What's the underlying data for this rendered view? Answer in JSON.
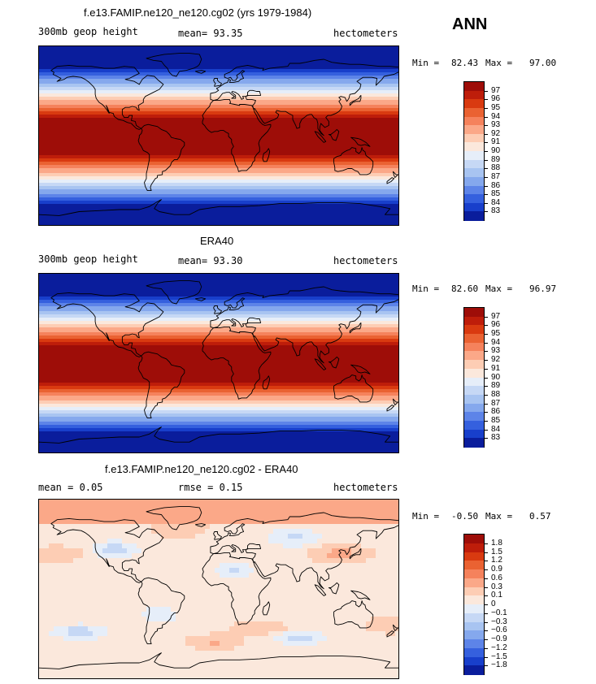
{
  "season": "ANN",
  "chart_data": [
    {
      "type": "heatmap",
      "title": "f.e13.FAMIP.ne120_ne120.cg02 (yrs 1979-1984)",
      "subtitle_left": "300mb geop height",
      "subtitle_center": "mean=   93.35",
      "subtitle_right": "hectometers",
      "min_label": "Min =",
      "min_value": "82.43",
      "max_label": "Max =",
      "max_value": "97.00",
      "colorbar_levels": [
        "97",
        "96",
        "95",
        "94",
        "93",
        "92",
        "91",
        "90",
        "89",
        "88",
        "87",
        "86",
        "85",
        "84",
        "83"
      ],
      "colorbar_colors": [
        "#9e0d08",
        "#be1d0a",
        "#d93a10",
        "#ea6232",
        "#f5825c",
        "#fba888",
        "#fdcdb4",
        "#fbe8dc",
        "#e6eef9",
        "#c6d8f5",
        "#a8c4f1",
        "#85a8ed",
        "#5d84e8",
        "#3560de",
        "#183fcb",
        "#0a1d9c"
      ],
      "field": "geop"
    },
    {
      "type": "heatmap",
      "title": "ERA40",
      "subtitle_left": "300mb geop height",
      "subtitle_center": "mean=   93.30",
      "subtitle_right": "hectometers",
      "min_label": "Min =",
      "min_value": "82.60",
      "max_label": "Max =",
      "max_value": "96.97",
      "colorbar_levels": [
        "97",
        "96",
        "95",
        "94",
        "93",
        "92",
        "91",
        "90",
        "89",
        "88",
        "87",
        "86",
        "85",
        "84",
        "83"
      ],
      "colorbar_colors": [
        "#9e0d08",
        "#be1d0a",
        "#d93a10",
        "#ea6232",
        "#f5825c",
        "#fba888",
        "#fdcdb4",
        "#fbe8dc",
        "#e6eef9",
        "#c6d8f5",
        "#a8c4f1",
        "#85a8ed",
        "#5d84e8",
        "#3560de",
        "#183fcb",
        "#0a1d9c"
      ],
      "field": "geop"
    },
    {
      "type": "heatmap",
      "title": "f.e13.FAMIP.ne120_ne120.cg02 - ERA40",
      "subtitle_left": "mean =    0.05",
      "subtitle_center": "rmse =    0.15",
      "subtitle_right": "hectometers",
      "min_label": "Min =",
      "min_value": "-0.50",
      "max_label": "Max =",
      "max_value": "0.57",
      "colorbar_levels": [
        "1.8",
        "1.5",
        "1.2",
        "0.9",
        "0.6",
        "0.3",
        "0.1",
        "0",
        "−0.1",
        "−0.3",
        "−0.6",
        "−0.9",
        "−1.2",
        "−1.5",
        "−1.8"
      ],
      "colorbar_colors": [
        "#9e0d08",
        "#be1d0a",
        "#d93a10",
        "#ea6232",
        "#f5825c",
        "#fba888",
        "#fdcdb4",
        "#fbe8dc",
        "#e6eef9",
        "#c6d8f5",
        "#a8c4f1",
        "#85a8ed",
        "#5d84e8",
        "#3560de",
        "#183fcb",
        "#0a1d9c"
      ],
      "field": "diff"
    }
  ]
}
